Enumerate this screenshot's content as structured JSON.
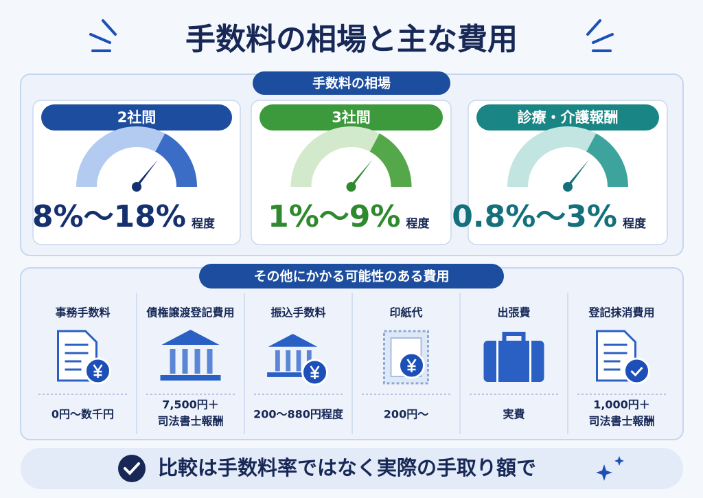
{
  "title": "手数料の相場と主な費用",
  "rates": {
    "label": "手数料の相場",
    "cards": [
      {
        "label": "2社間",
        "range": "8%〜18%",
        "suffix": "程度"
      },
      {
        "label": "3社間",
        "range": "1%〜9%",
        "suffix": "程度"
      },
      {
        "label": "診療・介護報酬",
        "range": "0.8%〜3%",
        "suffix": "程度"
      }
    ]
  },
  "costs": {
    "label": "その他にかかる可能性のある費用",
    "items": [
      {
        "label": "事務手数料",
        "amount": [
          "0円〜数千円"
        ]
      },
      {
        "label": "債権譲渡登記費用",
        "amount": [
          "7,500円＋",
          "司法書士報酬"
        ]
      },
      {
        "label": "振込手数料",
        "amount": [
          "200〜880円程度"
        ]
      },
      {
        "label": "印紙代",
        "amount": [
          "200円〜"
        ]
      },
      {
        "label": "出張費",
        "amount": [
          "実費"
        ]
      },
      {
        "label": "登記抹消費用",
        "amount": [
          "1,000円＋",
          "司法書士報酬"
        ]
      }
    ]
  },
  "footer": "比較は手数料率ではなく実際の手取り額で"
}
